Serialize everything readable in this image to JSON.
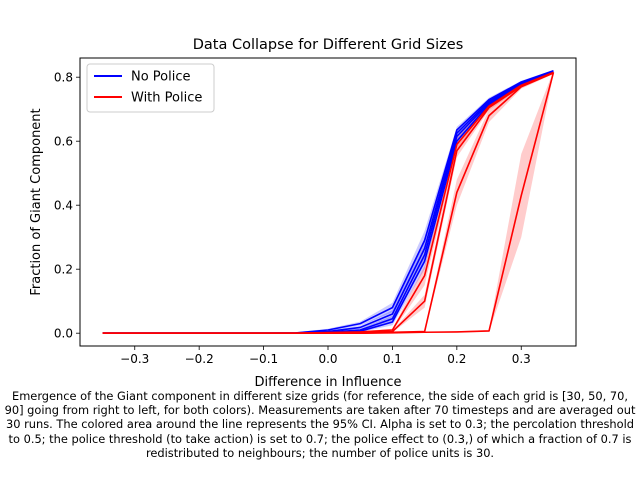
{
  "chart_data": {
    "type": "line",
    "title": "Data Collapse for Different Grid Sizes",
    "xlabel": "Difference in Influence",
    "ylabel": "Fraction of Giant Component",
    "xlim": [
      -0.385,
      0.385
    ],
    "ylim": [
      -0.04,
      0.86
    ],
    "xticks": [
      -0.3,
      -0.2,
      -0.1,
      0.0,
      0.1,
      0.2,
      0.3
    ],
    "xtick_labels": [
      "−0.3",
      "−0.2",
      "−0.1",
      "0.0",
      "0.1",
      "0.2",
      "0.3"
    ],
    "yticks": [
      0.0,
      0.2,
      0.4,
      0.6,
      0.8
    ],
    "ytick_labels": [
      "0.0",
      "0.2",
      "0.4",
      "0.6",
      "0.8"
    ],
    "grid": false,
    "legend_position": "top-left",
    "legend": [
      {
        "label": "No Police",
        "color": "#0000ff"
      },
      {
        "label": "With Police",
        "color": "#ff0000"
      }
    ],
    "series": [
      {
        "group": "No Police",
        "color": "#0000ff",
        "x": [
          -0.35,
          -0.3,
          -0.25,
          -0.2,
          -0.15,
          -0.1,
          -0.05,
          0.0,
          0.05,
          0.1,
          0.15,
          0.2,
          0.25,
          0.3,
          0.35
        ],
        "y": [
          0,
          0,
          0,
          0,
          0,
          0,
          0.001,
          0.01,
          0.03,
          0.08,
          0.29,
          0.635,
          0.73,
          0.785,
          0.82
        ],
        "ci": [
          0,
          0,
          0,
          0,
          0,
          0,
          0.002,
          0.004,
          0.006,
          0.015,
          0.03,
          0.01,
          0.006,
          0.004,
          0.003
        ]
      },
      {
        "group": "No Police",
        "color": "#0000ff",
        "x": [
          -0.35,
          -0.3,
          -0.25,
          -0.2,
          -0.15,
          -0.1,
          -0.05,
          0.0,
          0.05,
          0.1,
          0.15,
          0.2,
          0.25,
          0.3,
          0.35
        ],
        "y": [
          0,
          0,
          0,
          0,
          0,
          0,
          0,
          0.005,
          0.018,
          0.06,
          0.265,
          0.625,
          0.725,
          0.782,
          0.818
        ],
        "ci": [
          0,
          0,
          0,
          0,
          0,
          0,
          0.002,
          0.003,
          0.005,
          0.012,
          0.03,
          0.01,
          0.006,
          0.004,
          0.003
        ]
      },
      {
        "group": "No Police",
        "color": "#0000ff",
        "x": [
          -0.35,
          -0.3,
          -0.25,
          -0.2,
          -0.15,
          -0.1,
          -0.05,
          0.0,
          0.05,
          0.1,
          0.15,
          0.2,
          0.25,
          0.3,
          0.35
        ],
        "y": [
          0,
          0,
          0,
          0,
          0,
          0,
          0,
          0.003,
          0.01,
          0.045,
          0.245,
          0.615,
          0.72,
          0.78,
          0.817
        ],
        "ci": [
          0,
          0,
          0,
          0,
          0,
          0,
          0.001,
          0.002,
          0.004,
          0.01,
          0.025,
          0.01,
          0.006,
          0.004,
          0.003
        ]
      },
      {
        "group": "No Police",
        "color": "#0000ff",
        "x": [
          -0.35,
          -0.3,
          -0.25,
          -0.2,
          -0.15,
          -0.1,
          -0.05,
          0.0,
          0.05,
          0.1,
          0.15,
          0.2,
          0.25,
          0.3,
          0.35
        ],
        "y": [
          0,
          0,
          0,
          0,
          0,
          0,
          0,
          0.002,
          0.006,
          0.035,
          0.225,
          0.6,
          0.715,
          0.778,
          0.816
        ],
        "ci": [
          0,
          0,
          0,
          0,
          0,
          0,
          0.001,
          0.002,
          0.003,
          0.01,
          0.025,
          0.01,
          0.006,
          0.004,
          0.003
        ]
      },
      {
        "group": "With Police",
        "color": "#ff0000",
        "x": [
          -0.35,
          -0.3,
          -0.25,
          -0.2,
          -0.15,
          -0.1,
          -0.05,
          0.0,
          0.05,
          0.1,
          0.15,
          0.2,
          0.25,
          0.3,
          0.35
        ],
        "y": [
          0,
          0,
          0,
          0,
          0,
          0,
          0,
          0.002,
          0.004,
          0.01,
          0.18,
          0.59,
          0.71,
          0.775,
          0.815
        ],
        "ci": [
          0,
          0,
          0,
          0,
          0,
          0,
          0,
          0.001,
          0.002,
          0.004,
          0.03,
          0.02,
          0.008,
          0.005,
          0.003
        ]
      },
      {
        "group": "With Police",
        "color": "#ff0000",
        "x": [
          -0.35,
          -0.3,
          -0.25,
          -0.2,
          -0.15,
          -0.1,
          -0.05,
          0.0,
          0.05,
          0.1,
          0.15,
          0.2,
          0.25,
          0.3,
          0.35
        ],
        "y": [
          0,
          0,
          0,
          0,
          0,
          0,
          0,
          0.001,
          0.002,
          0.005,
          0.1,
          0.57,
          0.705,
          0.772,
          0.814
        ],
        "ci": [
          0,
          0,
          0,
          0,
          0,
          0,
          0,
          0,
          0.001,
          0.003,
          0.02,
          0.02,
          0.008,
          0.005,
          0.003
        ]
      },
      {
        "group": "With Police",
        "color": "#ff0000",
        "x": [
          -0.35,
          -0.3,
          -0.25,
          -0.2,
          -0.15,
          -0.1,
          -0.05,
          0.0,
          0.05,
          0.1,
          0.15,
          0.2,
          0.25,
          0.3,
          0.35
        ],
        "y": [
          0,
          0,
          0,
          0,
          0,
          0,
          0,
          0,
          0,
          0.003,
          0.005,
          0.44,
          0.68,
          0.77,
          0.813
        ],
        "ci": [
          0,
          0,
          0,
          0,
          0,
          0,
          0,
          0,
          0,
          0.002,
          0.003,
          0.04,
          0.02,
          0.006,
          0.003
        ]
      },
      {
        "group": "With Police",
        "color": "#ff0000",
        "x": [
          -0.35,
          -0.3,
          -0.25,
          -0.2,
          -0.15,
          -0.1,
          -0.05,
          0.0,
          0.05,
          0.1,
          0.15,
          0.2,
          0.25,
          0.3,
          0.35
        ],
        "y": [
          0,
          0,
          0,
          0,
          0,
          0,
          0,
          0,
          0,
          0.001,
          0.003,
          0.004,
          0.007,
          0.43,
          0.815
        ],
        "ci": [
          0,
          0,
          0,
          0,
          0,
          0,
          0,
          0,
          0,
          0,
          0.001,
          0.002,
          0.003,
          0.13,
          0.005
        ]
      }
    ]
  },
  "caption": "Emergence of the Giant component in different size grids (for reference, the side of each grid is [30, 50, 70, 90] going from right to left, for both colors). Measurements are taken after 70 timesteps and are averaged out 30 runs. The colored area around the line represents the 95% CI. Alpha is set to 0.3; the percolation threshold to 0.5; the police threshold (to take action) is set to 0.7; the police effect to (0.3,) of which a fraction of 0.7 is redistributed to neighbours; the number of police units is 30."
}
